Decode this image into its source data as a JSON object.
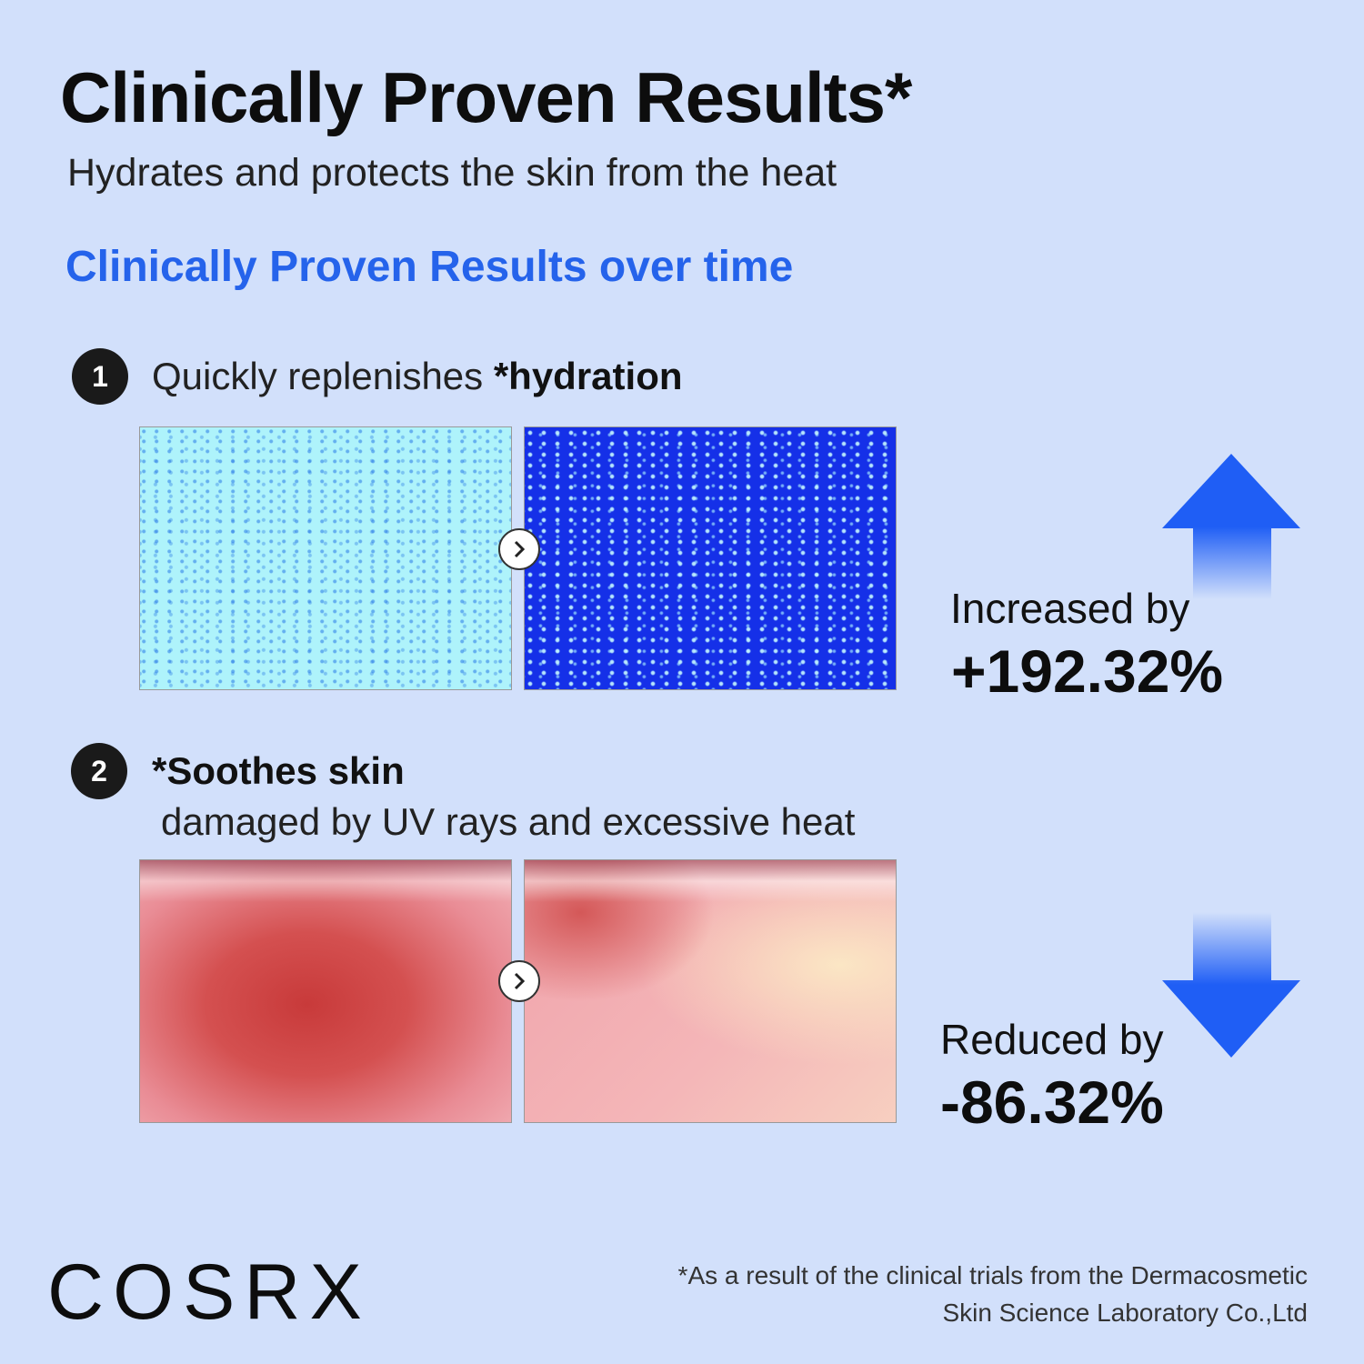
{
  "header": {
    "title": "Clinically Proven Results*",
    "subtitle": "Hydrates and protects the skin from the heat",
    "section_title": "Clinically Proven Results over time"
  },
  "items": [
    {
      "number": "1",
      "text": "Quickly replenishes ",
      "text_bold": "*hydration",
      "result_label": "Increased by",
      "result_value": "+192.32%",
      "arrow": "arrow-up-icon"
    },
    {
      "number": "2",
      "text_bold": "*Soothes skin",
      "text_line2": "damaged by UV rays and excessive heat",
      "result_label": "Reduced by",
      "result_value": "-86.32%",
      "arrow": "arrow-down-icon"
    }
  ],
  "colors": {
    "background": "#d2e0fb",
    "accent": "#2563eb",
    "arrow": "#1f5ef5"
  },
  "footer": {
    "logo": "COSRX",
    "footnote_line1": "*As a result of the clinical trials from the Dermacosmetic",
    "footnote_line2": "Skin Science Laboratory Co.,Ltd"
  }
}
